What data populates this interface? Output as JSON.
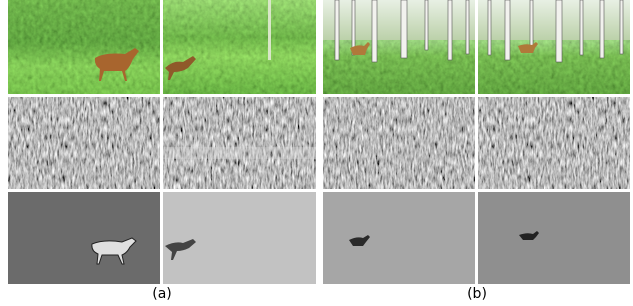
{
  "captions": {
    "a": "(a)",
    "b": "(b)"
  }
}
